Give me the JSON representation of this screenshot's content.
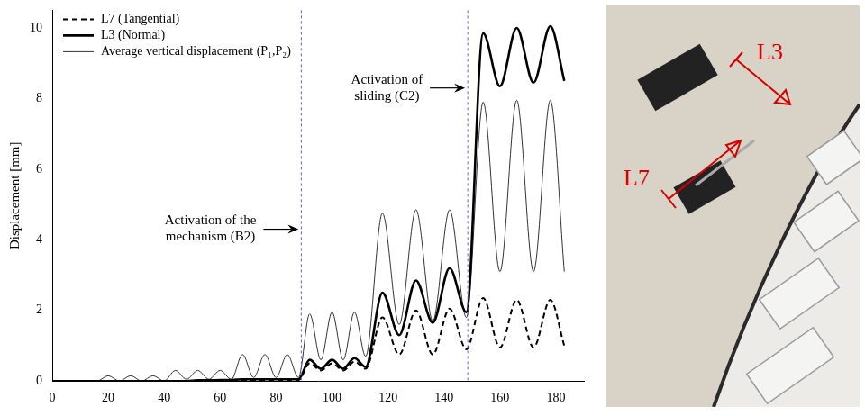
{
  "chart_data": {
    "type": "line",
    "y_label": "Displacement [mm]",
    "x": [
      0,
      16,
      20,
      24,
      28,
      32,
      36,
      40,
      44,
      48,
      52,
      56,
      60,
      64,
      68,
      72,
      76,
      80,
      84,
      88,
      92,
      96,
      100,
      104,
      108,
      112,
      118,
      124,
      130,
      136,
      142,
      148,
      154,
      160,
      166,
      172,
      178,
      183
    ],
    "series": [
      {
        "name": "L7 (Tangential)",
        "color": "#000000",
        "line_style": "dashed",
        "values": [
          0,
          0,
          0,
          0,
          0,
          0,
          0,
          0,
          0,
          0,
          0,
          0,
          0,
          0,
          0.02,
          0.02,
          0.02,
          0.02,
          0.03,
          0.03,
          0.5,
          0.3,
          0.5,
          0.3,
          0.55,
          0.35,
          1.8,
          0.75,
          2.0,
          0.75,
          2.05,
          0.9,
          2.35,
          0.95,
          2.3,
          0.95,
          2.3,
          1.0
        ]
      },
      {
        "name": "L3 (Normal)",
        "color": "#000000",
        "line_style": "solid",
        "values": [
          0,
          0,
          0,
          0,
          0,
          0,
          0,
          0,
          0,
          0,
          0.02,
          0.02,
          0.03,
          0.03,
          0.05,
          0.05,
          0.05,
          0.05,
          0.05,
          0.05,
          0.6,
          0.35,
          0.6,
          0.35,
          0.65,
          0.4,
          2.5,
          1.3,
          2.85,
          1.65,
          3.2,
          1.95,
          9.85,
          8.35,
          10.0,
          8.45,
          10.05,
          8.5
        ]
      },
      {
        "name": "Average vertical displacement (P₁,P₂)",
        "color": "#333333",
        "line_style": "solid",
        "values": [
          0,
          0,
          0.15,
          0,
          0.15,
          0,
          0.15,
          0,
          0.3,
          0.05,
          0.3,
          0.05,
          0.3,
          0.05,
          0.75,
          0.1,
          0.75,
          0.1,
          0.75,
          0.1,
          1.9,
          0.6,
          1.95,
          0.6,
          1.95,
          0.7,
          4.75,
          1.6,
          4.85,
          1.7,
          4.85,
          1.8,
          7.9,
          3.1,
          7.95,
          3.1,
          7.95,
          3.1
        ]
      }
    ],
    "xlim": [
      0,
      190
    ],
    "xticks": [
      0,
      20,
      40,
      60,
      80,
      100,
      120,
      140,
      160,
      180
    ],
    "ylim": [
      0,
      10.5
    ],
    "yticks": [
      0,
      2,
      4,
      6,
      8,
      10
    ],
    "grid": false,
    "legend": "upper left",
    "annotations": [
      {
        "text": "Activation of the mechanism (B2)",
        "x": 89,
        "y": 4.3
      },
      {
        "text": "Activation of sliding (C2)",
        "x": 148.5,
        "y": 8.3
      }
    ],
    "photo_labels": [
      "L3",
      "L7"
    ]
  }
}
